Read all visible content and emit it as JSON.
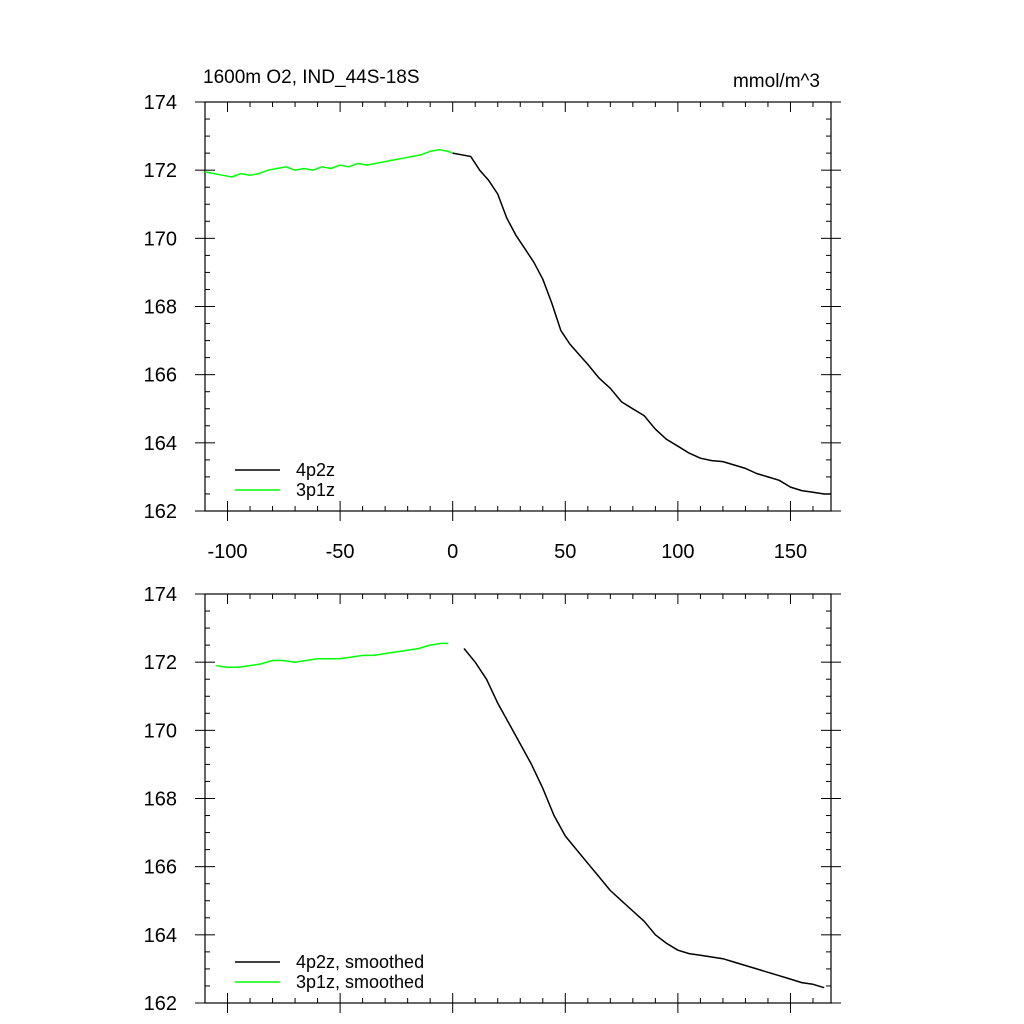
{
  "chart_data": [
    {
      "type": "line",
      "title": "1600m O2, IND_44S-18S",
      "units": "mmol/m^3",
      "xlabel": "",
      "ylabel": "",
      "xlim": [
        -110,
        168
      ],
      "ylim": [
        162,
        174
      ],
      "xticks": [
        -100,
        -50,
        0,
        50,
        100,
        150
      ],
      "xtick_labels": [
        "-100",
        "-50",
        "0",
        "50",
        "100",
        "150"
      ],
      "yticks": [
        162,
        164,
        166,
        168,
        170,
        172,
        174
      ],
      "ytick_labels": [
        "162",
        "164",
        "166",
        "168",
        "170",
        "172",
        "174"
      ],
      "legend": "bottom-left",
      "series": [
        {
          "name": "4p2z",
          "color": "#000000",
          "x": [
            0,
            4,
            8,
            12,
            16,
            20,
            24,
            28,
            32,
            36,
            40,
            44,
            48,
            52,
            56,
            60,
            65,
            70,
            75,
            80,
            85,
            90,
            95,
            100,
            105,
            110,
            115,
            120,
            125,
            130,
            135,
            140,
            145,
            150,
            155,
            160,
            165,
            168
          ],
          "values": [
            172.5,
            172.45,
            172.4,
            172.0,
            171.7,
            171.3,
            170.6,
            170.1,
            169.7,
            169.3,
            168.8,
            168.1,
            167.3,
            166.9,
            166.6,
            166.3,
            165.9,
            165.6,
            165.2,
            165.0,
            164.8,
            164.4,
            164.1,
            163.9,
            163.7,
            163.55,
            163.48,
            163.45,
            163.35,
            163.25,
            163.1,
            163.0,
            162.9,
            162.7,
            162.6,
            162.55,
            162.5,
            162.5
          ]
        },
        {
          "name": "3p1z",
          "color": "#00ff00",
          "x": [
            -110,
            -106,
            -102,
            -98,
            -94,
            -90,
            -86,
            -82,
            -78,
            -74,
            -70,
            -66,
            -62,
            -58,
            -54,
            -50,
            -46,
            -42,
            -38,
            -34,
            -30,
            -26,
            -22,
            -18,
            -14,
            -10,
            -6,
            -2,
            0
          ],
          "values": [
            171.95,
            171.9,
            171.85,
            171.8,
            171.9,
            171.85,
            171.9,
            172.0,
            172.05,
            172.1,
            172.0,
            172.05,
            172.0,
            172.1,
            172.05,
            172.15,
            172.1,
            172.2,
            172.15,
            172.2,
            172.25,
            172.3,
            172.35,
            172.4,
            172.45,
            172.55,
            172.6,
            172.55,
            172.5
          ]
        }
      ]
    },
    {
      "type": "line",
      "title": "",
      "xlabel": "",
      "ylabel": "",
      "xlim": [
        -110,
        168
      ],
      "ylim": [
        162,
        174
      ],
      "xticks": [
        -100,
        -50,
        0,
        50,
        100,
        150
      ],
      "yticks": [
        162,
        164,
        166,
        168,
        170,
        172,
        174
      ],
      "ytick_labels": [
        "162",
        "164",
        "166",
        "168",
        "170",
        "172",
        "174"
      ],
      "legend": "bottom-left",
      "series": [
        {
          "name": "4p2z, smoothed",
          "color": "#000000",
          "x": [
            5,
            10,
            15,
            20,
            25,
            30,
            35,
            40,
            45,
            50,
            55,
            60,
            65,
            70,
            75,
            80,
            85,
            90,
            95,
            100,
            105,
            110,
            115,
            120,
            125,
            130,
            135,
            140,
            145,
            150,
            155,
            160,
            165
          ],
          "values": [
            172.4,
            172.0,
            171.5,
            170.8,
            170.2,
            169.6,
            169.0,
            168.3,
            167.5,
            166.9,
            166.5,
            166.1,
            165.7,
            165.3,
            165.0,
            164.7,
            164.4,
            164.0,
            163.75,
            163.55,
            163.45,
            163.4,
            163.35,
            163.3,
            163.2,
            163.1,
            163.0,
            162.9,
            162.8,
            162.7,
            162.6,
            162.55,
            162.45
          ]
        },
        {
          "name": "3p1z, smoothed",
          "color": "#00ff00",
          "x": [
            -105,
            -100,
            -95,
            -90,
            -85,
            -80,
            -75,
            -70,
            -65,
            -60,
            -55,
            -50,
            -45,
            -40,
            -35,
            -30,
            -25,
            -20,
            -15,
            -10,
            -5,
            -2
          ],
          "values": [
            171.9,
            171.85,
            171.85,
            171.9,
            171.95,
            172.05,
            172.05,
            172.0,
            172.05,
            172.1,
            172.1,
            172.1,
            172.15,
            172.2,
            172.2,
            172.25,
            172.3,
            172.35,
            172.4,
            172.5,
            172.55,
            172.55
          ]
        }
      ]
    }
  ]
}
